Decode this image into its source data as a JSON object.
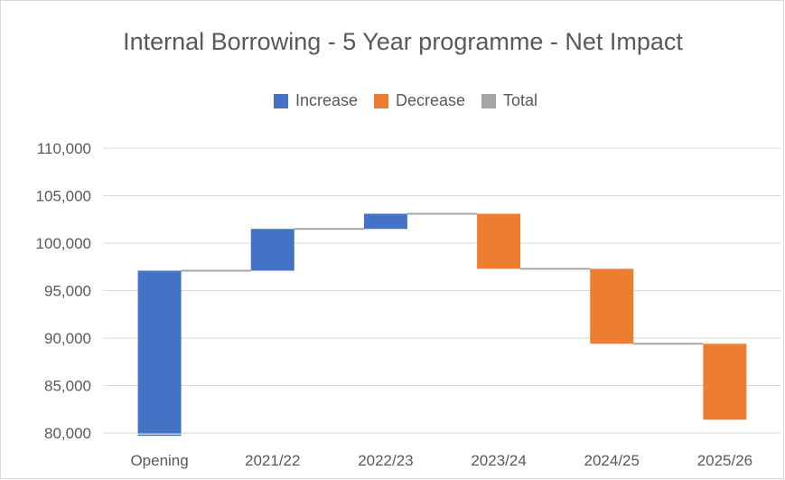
{
  "chart_data": {
    "type": "waterfall",
    "title": "Internal Borrowing - 5 Year programme - Net Impact",
    "categories": [
      "Opening",
      "2021/22",
      "2022/23",
      "2023/24",
      "2024/25",
      "2025/26"
    ],
    "bars": [
      {
        "category": "Opening",
        "kind": "increase",
        "start": 79700,
        "end": 97100
      },
      {
        "category": "2021/22",
        "kind": "increase",
        "start": 97100,
        "end": 101500
      },
      {
        "category": "2022/23",
        "kind": "increase",
        "start": 101500,
        "end": 103100
      },
      {
        "category": "2023/24",
        "kind": "decrease",
        "start": 103100,
        "end": 97300
      },
      {
        "category": "2024/25",
        "kind": "decrease",
        "start": 97300,
        "end": 89400
      },
      {
        "category": "2025/26",
        "kind": "decrease",
        "start": 89400,
        "end": 81400
      }
    ],
    "legend": [
      {
        "label": "Increase",
        "kind": "increase"
      },
      {
        "label": "Decrease",
        "kind": "decrease"
      },
      {
        "label": "Total",
        "kind": "total"
      }
    ],
    "colors": {
      "increase": "#4472c4",
      "decrease": "#ed7d31",
      "total": "#a5a5a5",
      "connector": "#a5a5a5",
      "grid": "#d9d9d9"
    },
    "ylim": [
      80000,
      110000
    ],
    "yticks": [
      80000,
      85000,
      90000,
      95000,
      100000,
      105000,
      110000
    ],
    "ytick_labels": [
      "80,000",
      "85,000",
      "90,000",
      "95,000",
      "100,000",
      "105,000",
      "110,000"
    ],
    "grid": true,
    "legend_position": "top",
    "xlabel": "",
    "ylabel": ""
  }
}
